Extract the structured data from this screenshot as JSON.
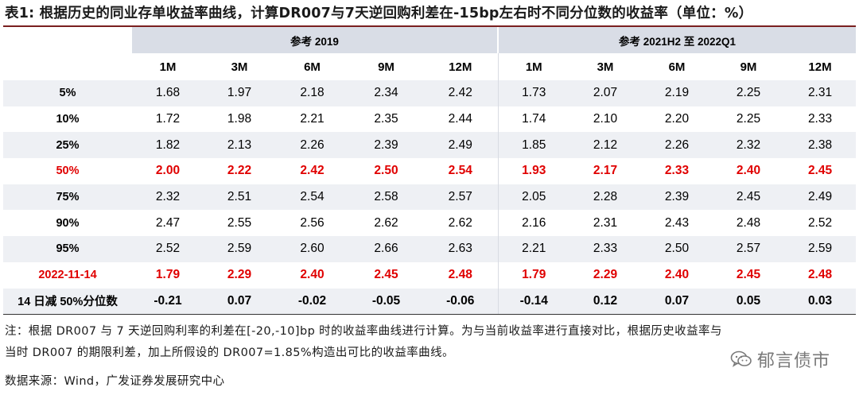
{
  "title": "表1: 根据历史的同业存单收益率曲线，计算DR007与7天逆回购利差在-15bp左右时不同分位数的收益率（单位：%）",
  "groups": [
    "参考 2019",
    "参考 2021H2 至 2022Q1"
  ],
  "tenors": [
    "1M",
    "3M",
    "6M",
    "9M",
    "12M",
    "1M",
    "3M",
    "6M",
    "9M",
    "12M"
  ],
  "rows": [
    {
      "label": "5%",
      "values": [
        "1.68",
        "1.97",
        "2.18",
        "2.34",
        "2.42",
        "1.73",
        "2.07",
        "2.19",
        "2.25",
        "2.31"
      ]
    },
    {
      "label": "10%",
      "values": [
        "1.72",
        "1.98",
        "2.21",
        "2.35",
        "2.44",
        "1.74",
        "2.10",
        "2.20",
        "2.25",
        "2.33"
      ]
    },
    {
      "label": "25%",
      "values": [
        "1.82",
        "2.13",
        "2.26",
        "2.39",
        "2.49",
        "1.85",
        "2.12",
        "2.26",
        "2.32",
        "2.38"
      ]
    },
    {
      "label": "50%",
      "values": [
        "2.00",
        "2.22",
        "2.42",
        "2.50",
        "2.54",
        "1.93",
        "2.17",
        "2.33",
        "2.40",
        "2.45"
      ]
    },
    {
      "label": "75%",
      "values": [
        "2.32",
        "2.51",
        "2.54",
        "2.58",
        "2.57",
        "2.05",
        "2.28",
        "2.39",
        "2.45",
        "2.49"
      ]
    },
    {
      "label": "90%",
      "values": [
        "2.47",
        "2.55",
        "2.56",
        "2.62",
        "2.62",
        "2.16",
        "2.31",
        "2.43",
        "2.48",
        "2.52"
      ]
    },
    {
      "label": "95%",
      "values": [
        "2.52",
        "2.59",
        "2.60",
        "2.66",
        "2.63",
        "2.21",
        "2.33",
        "2.50",
        "2.57",
        "2.59"
      ]
    },
    {
      "label": "2022-11-14",
      "values": [
        "1.79",
        "2.29",
        "2.40",
        "2.45",
        "2.48",
        "1.79",
        "2.29",
        "2.40",
        "2.45",
        "2.48"
      ]
    },
    {
      "label": "14 日减 50%分位数",
      "values": [
        "-0.21",
        "0.07",
        "-0.02",
        "-0.05",
        "-0.06",
        "-0.14",
        "0.12",
        "0.07",
        "0.05",
        "0.03"
      ]
    }
  ],
  "note_line1": "注：根据 DR007 与 7 天逆回购利率的利差在[-20,-10]bp 时的收益率曲线进行计算。为与当前收益率进行直接对比，根据历史收益率与",
  "note_line2": "当时 DR007 的期限利差，加上所假设的 DR007=1.85%构造出可比的收益率曲线。",
  "source": "数据来源：Wind，广发证券发展研究中心",
  "watermark": "郁言债市",
  "colors": {
    "title_rule": "#7a1f1f",
    "header_fill": "#d9dde6",
    "row_shade": "#eef0f4",
    "highlight": "#e00000"
  }
}
